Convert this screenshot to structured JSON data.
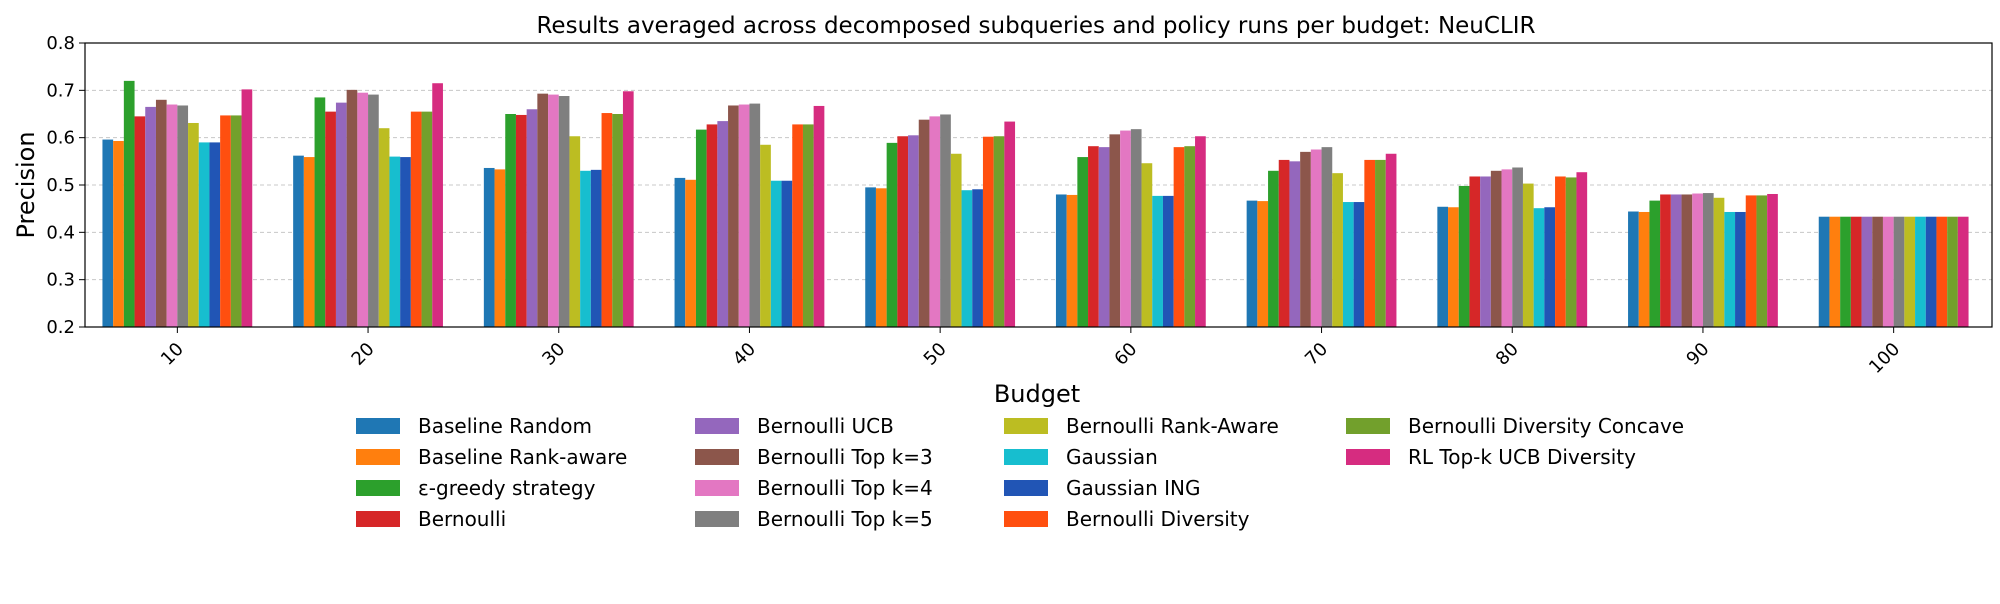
{
  "chart_data": {
    "type": "bar",
    "title": "Results averaged across decomposed subqueries and policy runs per budget: NeuCLIR",
    "xlabel": "Budget",
    "ylabel": "Precision",
    "ylim": [
      0.2,
      0.8
    ],
    "yticks": [
      "0.2",
      "0.3",
      "0.4",
      "0.5",
      "0.6",
      "0.7",
      "0.8"
    ],
    "grid": "horizontal dashed",
    "legend_position": "bottom",
    "categories": [
      "10",
      "20",
      "30",
      "40",
      "50",
      "60",
      "70",
      "80",
      "90",
      "100"
    ],
    "series": [
      {
        "name": "Baseline Random",
        "color": "#1f77b4",
        "values": [
          0.596,
          0.562,
          0.536,
          0.515,
          0.495,
          0.48,
          0.467,
          0.454,
          0.444,
          0.433
        ]
      },
      {
        "name": "Baseline Rank-aware",
        "color": "#ff7f0e",
        "values": [
          0.593,
          0.559,
          0.533,
          0.511,
          0.493,
          0.479,
          0.466,
          0.453,
          0.443,
          0.433
        ]
      },
      {
        "name": "ε-greedy strategy",
        "color": "#2ca02c",
        "values": [
          0.72,
          0.685,
          0.65,
          0.617,
          0.589,
          0.559,
          0.53,
          0.498,
          0.467,
          0.433
        ]
      },
      {
        "name": "Bernoulli",
        "color": "#d62728",
        "values": [
          0.645,
          0.655,
          0.648,
          0.628,
          0.603,
          0.582,
          0.553,
          0.518,
          0.48,
          0.433
        ]
      },
      {
        "name": "Bernoulli UCB",
        "color": "#9467bd",
        "values": [
          0.665,
          0.674,
          0.66,
          0.635,
          0.605,
          0.58,
          0.55,
          0.518,
          0.48,
          0.433
        ]
      },
      {
        "name": "Bernoulli Top k=3",
        "color": "#8c564b",
        "values": [
          0.68,
          0.701,
          0.693,
          0.668,
          0.638,
          0.607,
          0.57,
          0.53,
          0.48,
          0.433
        ]
      },
      {
        "name": "Bernoulli Top k=4",
        "color": "#e377c2",
        "values": [
          0.67,
          0.695,
          0.691,
          0.67,
          0.645,
          0.615,
          0.575,
          0.533,
          0.482,
          0.433
        ]
      },
      {
        "name": "Bernoulli Top k=5",
        "color": "#7f7f7f",
        "values": [
          0.668,
          0.691,
          0.688,
          0.672,
          0.649,
          0.618,
          0.58,
          0.537,
          0.483,
          0.433
        ]
      },
      {
        "name": "Bernoulli Rank-Aware",
        "color": "#bcbd22",
        "values": [
          0.631,
          0.62,
          0.603,
          0.585,
          0.566,
          0.546,
          0.525,
          0.503,
          0.473,
          0.433
        ]
      },
      {
        "name": "Gaussian",
        "color": "#17becf",
        "values": [
          0.59,
          0.56,
          0.53,
          0.509,
          0.489,
          0.477,
          0.464,
          0.451,
          0.443,
          0.433
        ]
      },
      {
        "name": "Gaussian ING",
        "color": "#2155b5",
        "values": [
          0.59,
          0.559,
          0.532,
          0.509,
          0.491,
          0.477,
          0.464,
          0.453,
          0.443,
          0.433
        ]
      },
      {
        "name": "Bernoulli Diversity",
        "color": "#ff4f0f",
        "values": [
          0.647,
          0.655,
          0.652,
          0.628,
          0.602,
          0.58,
          0.553,
          0.518,
          0.478,
          0.433
        ]
      },
      {
        "name": "Bernoulli Diversity Concave",
        "color": "#72a02c",
        "values": [
          0.647,
          0.655,
          0.65,
          0.628,
          0.603,
          0.582,
          0.553,
          0.516,
          0.478,
          0.433
        ]
      },
      {
        "name": "RL Top-k UCB Diversity",
        "color": "#d62c80",
        "values": [
          0.702,
          0.715,
          0.698,
          0.667,
          0.634,
          0.603,
          0.566,
          0.527,
          0.481,
          0.433
        ]
      }
    ]
  }
}
